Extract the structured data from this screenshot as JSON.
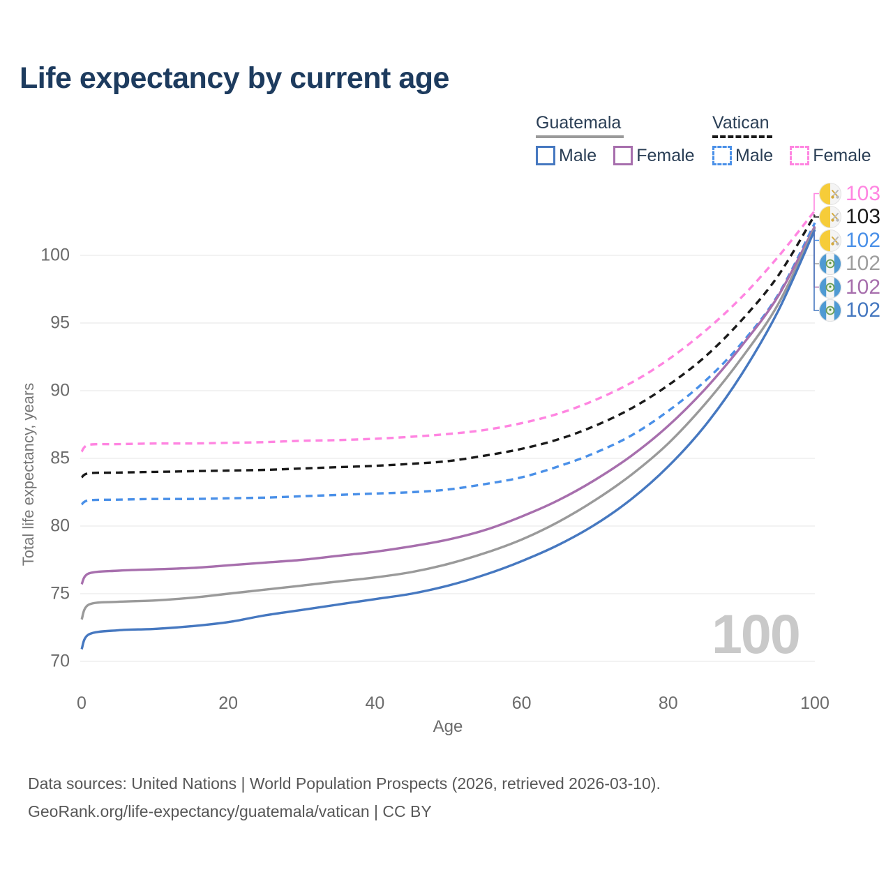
{
  "title": "Life expectancy by current age",
  "watermark": "100",
  "legend": {
    "groups": [
      {
        "name": "Guatemala",
        "line_style": "solid",
        "underline_color": "#9a9a9a",
        "items": [
          {
            "label": "Male",
            "color": "#4678c0",
            "dashed": false
          },
          {
            "label": "Female",
            "color": "#a76fad",
            "dashed": false
          }
        ]
      },
      {
        "name": "Vatican",
        "line_style": "dashed",
        "underline_color": "#1a1a1a",
        "items": [
          {
            "label": "Male",
            "color": "#4a90e8",
            "dashed": true
          },
          {
            "label": "Female",
            "color": "#ff85e1",
            "dashed": true
          }
        ]
      }
    ]
  },
  "chart_data": {
    "type": "line",
    "title": "Life expectancy by current age",
    "xlabel": "Age",
    "ylabel": "Total life expectancy, years",
    "xlim": [
      0,
      100
    ],
    "ylim": [
      68.5,
      104.5
    ],
    "x_ticks": [
      0,
      20,
      40,
      60,
      80,
      100
    ],
    "y_ticks": [
      100,
      95,
      90,
      85,
      80,
      75,
      70
    ],
    "grid": "horizontal",
    "gridline_color": "#e9e9e9",
    "x": [
      0,
      1,
      5,
      10,
      15,
      20,
      25,
      30,
      35,
      40,
      45,
      50,
      55,
      60,
      65,
      70,
      75,
      80,
      85,
      90,
      95,
      100
    ],
    "series": [
      {
        "id": "vatican-female",
        "name": "Vatican Female",
        "color": "#ff85e1",
        "dashed": true,
        "values": [
          85.5,
          86.0,
          86.05,
          86.1,
          86.1,
          86.15,
          86.2,
          86.3,
          86.35,
          86.45,
          86.6,
          86.8,
          87.1,
          87.6,
          88.3,
          89.3,
          90.6,
          92.3,
          94.4,
          96.9,
          99.9,
          103.3
        ]
      },
      {
        "id": "vatican-total",
        "name": "Vatican Both sexes",
        "color": "#1a1a1a",
        "dashed": true,
        "values": [
          83.6,
          83.9,
          83.95,
          84.0,
          84.05,
          84.1,
          84.15,
          84.25,
          84.35,
          84.45,
          84.6,
          84.8,
          85.2,
          85.7,
          86.4,
          87.4,
          88.7,
          90.4,
          92.5,
          95.2,
          98.5,
          103.0
        ]
      },
      {
        "id": "vatican-male",
        "name": "Vatican Male",
        "color": "#4a90e8",
        "dashed": true,
        "values": [
          81.6,
          81.9,
          81.95,
          82.0,
          82.0,
          82.05,
          82.1,
          82.2,
          82.3,
          82.4,
          82.5,
          82.7,
          83.1,
          83.6,
          84.4,
          85.4,
          86.7,
          88.5,
          90.7,
          93.5,
          97.1,
          102.4
        ]
      },
      {
        "id": "guatemala-female",
        "name": "Guatemala Female",
        "color": "#a76fad",
        "dashed": false,
        "values": [
          75.7,
          76.5,
          76.7,
          76.8,
          76.9,
          77.1,
          77.3,
          77.5,
          77.8,
          78.1,
          78.5,
          79.0,
          79.7,
          80.7,
          81.9,
          83.4,
          85.2,
          87.4,
          90.1,
          93.3,
          97.0,
          102.15
        ]
      },
      {
        "id": "guatemala-total",
        "name": "Guatemala Both sexes",
        "color": "#9a9a9a",
        "dashed": false,
        "values": [
          73.1,
          74.2,
          74.4,
          74.5,
          74.7,
          75.0,
          75.3,
          75.6,
          75.9,
          76.2,
          76.6,
          77.2,
          78.0,
          79.0,
          80.3,
          81.9,
          83.8,
          86.1,
          89.0,
          92.4,
          96.4,
          102.05
        ]
      },
      {
        "id": "guatemala-male",
        "name": "Guatemala Male",
        "color": "#4678c0",
        "dashed": false,
        "values": [
          70.9,
          72.0,
          72.3,
          72.4,
          72.6,
          72.9,
          73.4,
          73.8,
          74.2,
          74.6,
          75.0,
          75.6,
          76.4,
          77.4,
          78.6,
          80.1,
          82.0,
          84.4,
          87.4,
          91.2,
          95.9,
          101.9
        ]
      }
    ],
    "end_labels": [
      {
        "value": "103",
        "color": "#ff85e1",
        "flag": "vatican",
        "series": "vatican-female"
      },
      {
        "value": "103",
        "color": "#1a1a1a",
        "flag": "vatican",
        "series": "vatican-total"
      },
      {
        "value": "102",
        "color": "#4a90e8",
        "flag": "vatican",
        "series": "vatican-male"
      },
      {
        "value": "102",
        "color": "#9e9e9e",
        "flag": "guatemala",
        "series": "guatemala-total"
      },
      {
        "value": "102",
        "color": "#a76fad",
        "flag": "guatemala",
        "series": "guatemala-female"
      },
      {
        "value": "102",
        "color": "#4678c0",
        "flag": "guatemala",
        "series": "guatemala-male"
      }
    ]
  },
  "footer": {
    "line1": "Data sources: United Nations | World Population Prospects (2026, retrieved 2026-03-10).",
    "line2": "GeoRank.org/life-expectancy/guatemala/vatican | CC BY"
  }
}
